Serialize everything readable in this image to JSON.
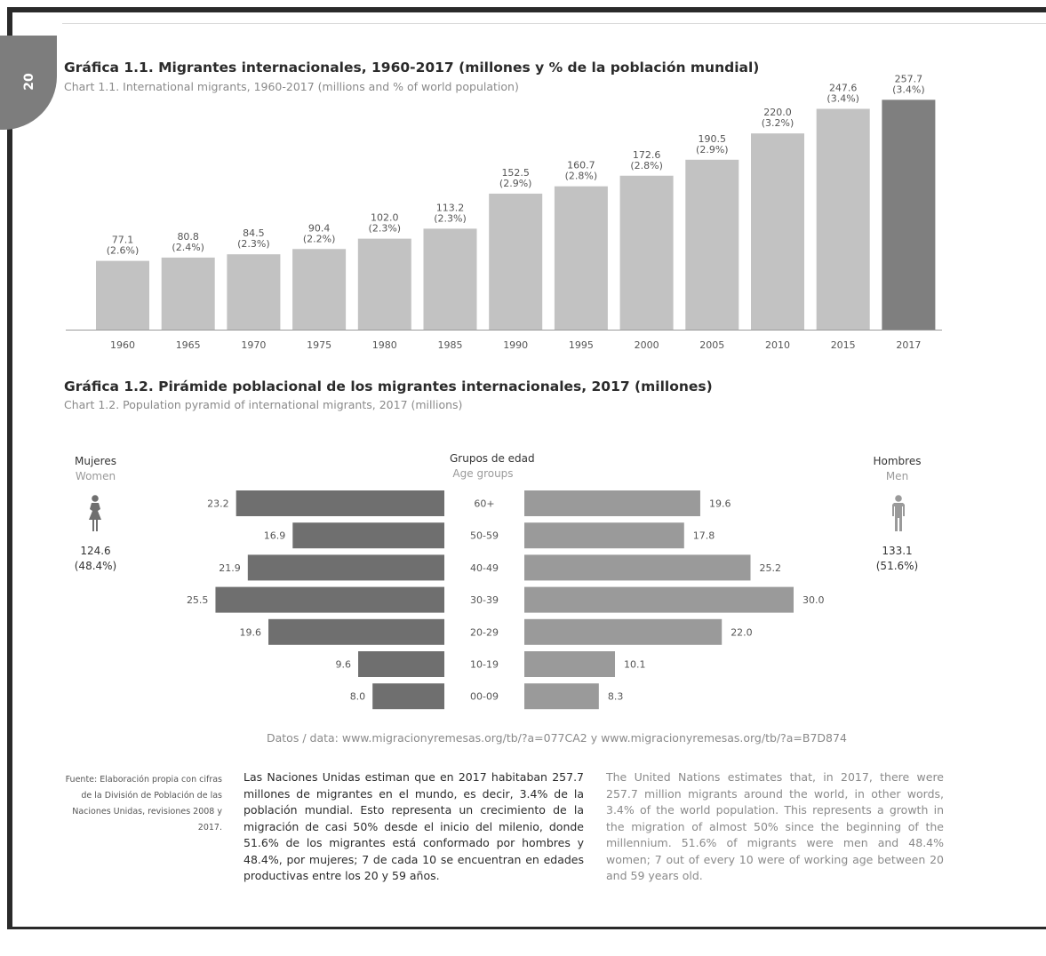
{
  "page": {
    "number": "20"
  },
  "chart1": {
    "title_es": "Gráfica 1.1. Migrantes internacionales, 1960-2017 (millones y % de la población mundial)",
    "title_en": "Chart 1.1. International migrants, 1960-2017 (millions and % of world population)"
  },
  "chart2": {
    "title_es": "Gráfica 1.2. Pirámide poblacional de los migrantes internacionales, 2017 (millones)",
    "title_en": "Chart 1.2. Population pyramid of international migrants, 2017 (millions)",
    "women_label": "Mujeres",
    "women_label_en": "Women",
    "men_label": "Hombres",
    "men_label_en": "Men",
    "age_label": "Grupos de edad",
    "age_label_en": "Age groups",
    "women_total": "124.6",
    "women_pct": "(48.4%)",
    "men_total": "133.1",
    "men_pct": "(51.6%)"
  },
  "chart_data": [
    {
      "type": "bar",
      "title": "Gráfica 1.1. Migrantes internacionales, 1960-2017 (millones y % de la población mundial)",
      "categories": [
        "1960",
        "1965",
        "1970",
        "1975",
        "1980",
        "1985",
        "1990",
        "1995",
        "2000",
        "2005",
        "2010",
        "2015",
        "2017"
      ],
      "values": [
        77.1,
        80.8,
        84.5,
        90.4,
        102.0,
        113.2,
        152.5,
        160.7,
        172.6,
        190.5,
        220.0,
        247.6,
        257.7
      ],
      "value_labels": [
        "77.1",
        "80.8",
        "84.5",
        "90.4",
        "102.0",
        "113.2",
        "152.5",
        "160.7",
        "172.6",
        "190.5",
        "220.0",
        "247.6",
        "257.7"
      ],
      "pct_labels": [
        "(2.6%)",
        "(2.4%)",
        "(2.3%)",
        "(2.2%)",
        "(2.3%)",
        "(2.3%)",
        "(2.9%)",
        "(2.8%)",
        "(2.8%)",
        "(2.9%)",
        "(3.2%)",
        "(3.4%)",
        "(3.4%)"
      ],
      "colors": {
        "bar": "#c2c2c2",
        "highlight": "#7f7f7f"
      },
      "highlight_category": "2017",
      "ylim": [
        0,
        270
      ]
    },
    {
      "type": "bar",
      "title": "Gráfica 1.2. Pirámide poblacional de los migrantes internacionales, 2017 (millones)",
      "categories": [
        "60+",
        "50-59",
        "40-49",
        "30-39",
        "20-29",
        "10-19",
        "00-09"
      ],
      "series": [
        {
          "name": "Mujeres",
          "values": [
            23.2,
            16.9,
            21.9,
            25.5,
            19.6,
            9.6,
            8.0
          ],
          "labels": [
            "23.2",
            "16.9",
            "21.9",
            "25.5",
            "19.6",
            "9.6",
            "8.0"
          ],
          "color": "#6f6f6f"
        },
        {
          "name": "Hombres",
          "values": [
            19.6,
            17.8,
            25.2,
            30.0,
            22.0,
            10.1,
            8.3
          ],
          "labels": [
            "19.6",
            "17.8",
            "25.2",
            "30.0",
            "22.0",
            "10.1",
            "8.3"
          ],
          "color": "#9a9a9a"
        }
      ],
      "xlim": [
        0,
        30
      ]
    }
  ],
  "footer": {
    "data_line": "Datos / data: www.migracionyremesas.org/tb/?a=077CA2 y www.migracionyremesas.org/tb/?a=B7D874",
    "source": "Fuente: Elaboración propia con cifras de la División de Población de las Naciones Unidas, revisiones 2008 y 2017.",
    "body_es": "Las Naciones Unidas estiman que en 2017 habitaban 257.7 millones de migrantes en el mundo, es decir, 3.4% de la población mundial. Esto representa un crecimiento de la migración de casi 50% desde el inicio del milenio, donde 51.6% de los migrantes está conformado por hombres y 48.4%, por mujeres; 7 de cada 10 se encuentran en edades productivas entre los 20 y 59 años.",
    "body_en": "The United Nations estimates that, in 2017, there were 257.7 million migrants around the world, in other words, 3.4% of the world population. This represents a growth in the migration of almost 50% since the beginning of the millennium. 51.6% of migrants were men and 48.4% women; 7 out of every 10 were of working age between 20 and 59 years old."
  }
}
